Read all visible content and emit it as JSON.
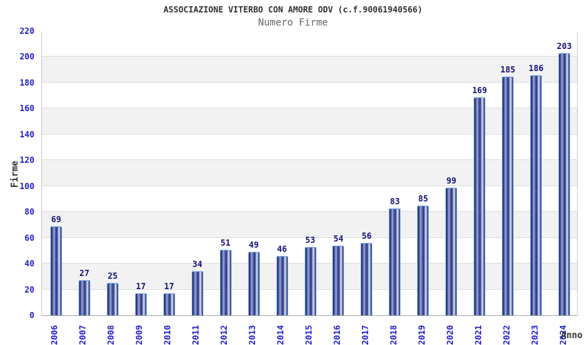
{
  "header": {
    "title": "ASSOCIAZIONE VITERBO CON AMORE ODV (c.f.90061940566)",
    "subtitle": "Numero Firme"
  },
  "chart_data": {
    "type": "bar",
    "title": "ASSOCIAZIONE VITERBO CON AMORE ODV (c.f.90061940566)",
    "subtitle": "Numero Firme",
    "xlabel": "Anno",
    "ylabel": "Firme",
    "categories": [
      "2006",
      "2007",
      "2008",
      "2009",
      "2010",
      "2011",
      "2012",
      "2013",
      "2014",
      "2015",
      "2016",
      "2017",
      "2018",
      "2019",
      "2020",
      "2021",
      "2022",
      "2023",
      "2024"
    ],
    "values": [
      69,
      27,
      25,
      17,
      17,
      34,
      51,
      49,
      46,
      53,
      54,
      56,
      83,
      85,
      99,
      169,
      185,
      186,
      203
    ],
    "ylim": [
      0,
      220
    ],
    "ytick_step": 20,
    "yticks": [
      0,
      20,
      40,
      60,
      80,
      100,
      120,
      140,
      160,
      180,
      200,
      220
    ],
    "grid": "horizontal-alternating-bands",
    "legend": "none",
    "colors": {
      "bar_edge_dark": "#141d66",
      "bar_mid_light": "#9daad6",
      "bar_core": "#2b3786",
      "bar_highlight": "#d9e0f2",
      "bar_border": "#74aae2",
      "tick_text": "#2222cc",
      "value_text": "#14147a",
      "band_gray": "#f2f2f2",
      "band_white": "#ffffff",
      "grid_line": "#dddddd",
      "title_text": "#333333",
      "subtitle_text": "#666666",
      "axis_title_text": "#333333"
    }
  }
}
